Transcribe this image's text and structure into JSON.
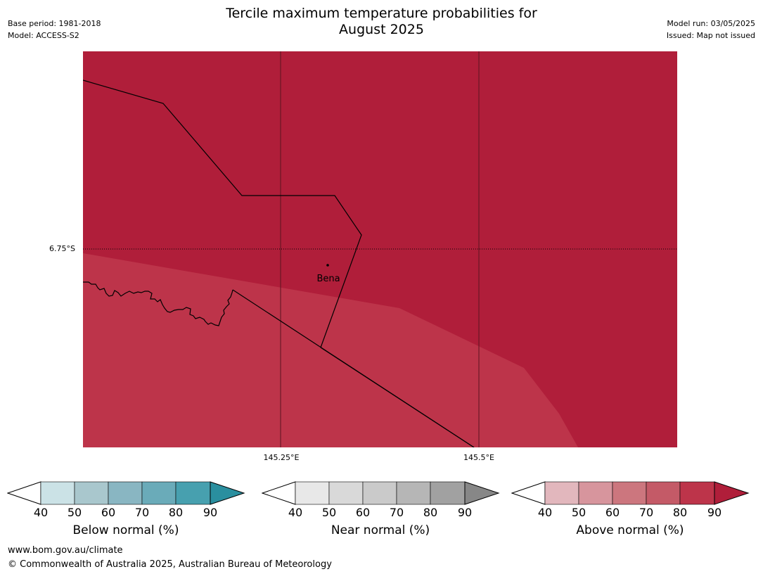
{
  "header": {
    "title_line1": "Tercile maximum temperature probabilities for",
    "title_line2": "August 2025",
    "base_period": "Base period: 1981-2018",
    "model": "Model: ACCESS-S2",
    "model_run": "Model run: 03/05/2025",
    "issued": "Issued: Map not issued"
  },
  "map": {
    "lat_label": "6.75°S",
    "lon_labels": [
      "145.25°E",
      "145.5°E"
    ],
    "place_label": "Bena",
    "colors": {
      "high_prob_region": "#b01e3a",
      "mid_prob_region": "#bd344a",
      "boundary": "#000000"
    }
  },
  "legends": [
    {
      "title": "Below normal (%)",
      "ticks": [
        "40",
        "50",
        "60",
        "70",
        "80",
        "90"
      ],
      "colors": [
        "#ffffff",
        "#cbe2e6",
        "#a9c7cd",
        "#89b6c2",
        "#6aabb9",
        "#47a0af",
        "#2a8f9f"
      ]
    },
    {
      "title": "Near normal (%)",
      "ticks": [
        "40",
        "50",
        "60",
        "70",
        "80",
        "90"
      ],
      "colors": [
        "#ffffff",
        "#e8e8e8",
        "#d9d9d9",
        "#cacaca",
        "#b6b6b6",
        "#a1a1a1",
        "#878787"
      ]
    },
    {
      "title": "Above normal (%)",
      "ticks": [
        "40",
        "50",
        "60",
        "70",
        "80",
        "90"
      ],
      "colors": [
        "#ffffff",
        "#e2b7bd",
        "#d7959d",
        "#cc767e",
        "#c45a67",
        "#bd344a",
        "#b01e3a"
      ]
    }
  ],
  "footer": {
    "url": "www.bom.gov.au/climate",
    "copyright": "© Commonwealth of Australia 2025, Australian Bureau of Meteorology"
  }
}
